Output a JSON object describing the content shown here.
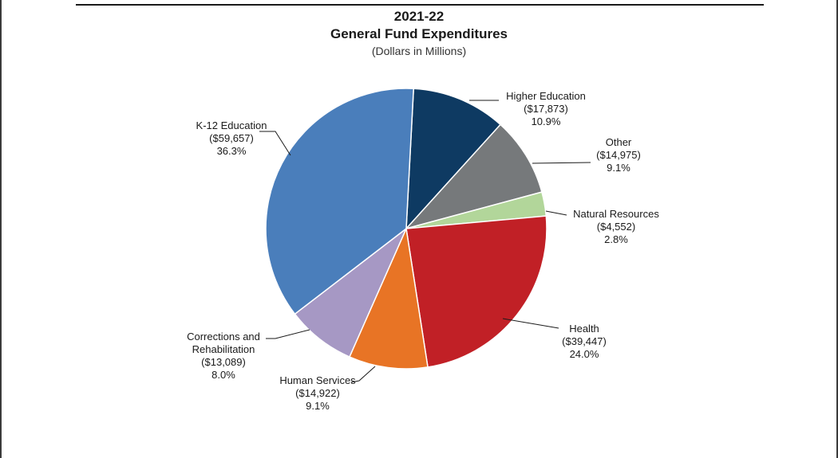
{
  "title": {
    "year": "2021-22",
    "main": "General Fund Expenditures",
    "sub": "(Dollars in Millions)"
  },
  "chart_data": {
    "type": "pie",
    "title": "2021-22 General Fund Expenditures",
    "subtitle": "(Dollars in Millions)",
    "start_angle_deg": 3,
    "direction": "clockwise",
    "slices": [
      {
        "name": "Higher Education",
        "value": 17873,
        "value_label": "($17,873)",
        "percent": 10.9,
        "percent_label": "10.9%",
        "color": "#0e3a62"
      },
      {
        "name": "Other",
        "value": 14975,
        "value_label": "($14,975)",
        "percent": 9.1,
        "percent_label": "9.1%",
        "color": "#76797b"
      },
      {
        "name": "Natural Resources",
        "value": 4552,
        "value_label": "($4,552)",
        "percent": 2.8,
        "percent_label": "2.8%",
        "color": "#b2d69a"
      },
      {
        "name": "Health",
        "value": 39447,
        "value_label": "($39,447)",
        "percent": 24.0,
        "percent_label": "24.0%",
        "color": "#c12026"
      },
      {
        "name": "Human Services",
        "value": 14922,
        "value_label": "($14,922)",
        "percent": 9.1,
        "percent_label": "9.1%",
        "color": "#e87425"
      },
      {
        "name": "Corrections and Rehabilitation",
        "value": 13089,
        "value_label": "($13,089)",
        "percent": 8.0,
        "percent_label": "8.0%",
        "color": "#a698c4"
      },
      {
        "name": "K-12 Education",
        "value": 59657,
        "value_label": "($59,657)",
        "percent": 36.3,
        "percent_label": "36.3%",
        "color": "#4a7ebb"
      }
    ]
  }
}
